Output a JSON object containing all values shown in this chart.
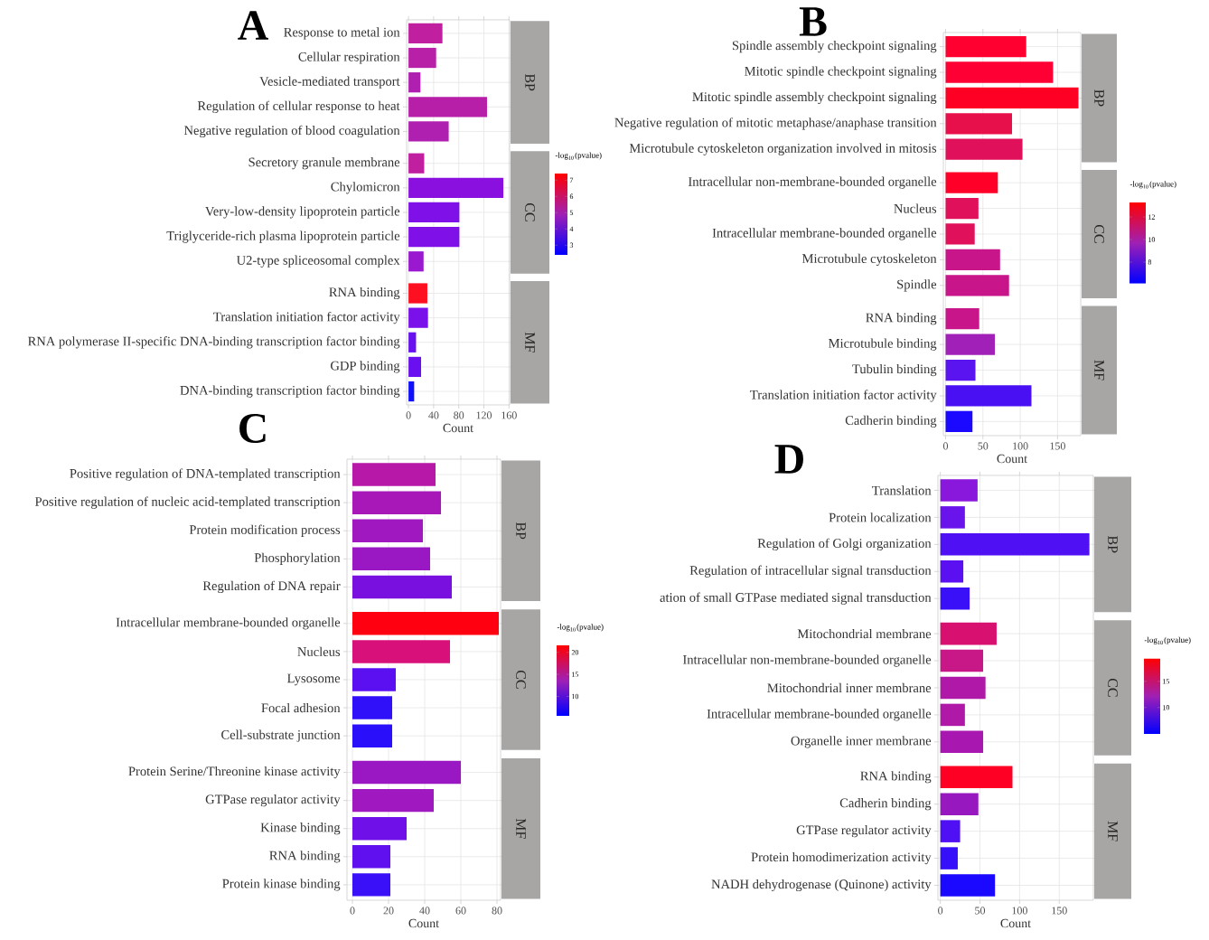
{
  "chart_data": [
    {
      "type": "bar",
      "orientation": "horizontal",
      "title": "A",
      "xlabel": "Count",
      "categories": [
        "Response to metal ion",
        "Cellular respiration",
        "Vesicle-mediated transport",
        "Regulation of cellular response to heat",
        "Negative regulation of blood coagulation",
        "Secretory granule membrane",
        "Chylomicron",
        "Very-low-density lipoprotein particle",
        "Triglyceride-rich plasma lipoprotein particle",
        "U2-type spliceosomal complex",
        "RNA binding",
        "Translation initiation factor activity",
        "RNA polymerase II-specific DNA-binding transcription factor binding",
        "GDP binding",
        "DNA-binding transcription factor binding"
      ],
      "values": [
        54,
        44,
        19,
        125,
        64,
        25,
        151,
        81,
        81,
        24,
        30,
        31,
        12,
        20,
        9
      ],
      "colors": [
        "#c020a0",
        "#b820a8",
        "#b020b0",
        "#b81fa8",
        "#b020b0",
        "#c01fa0",
        "#8a10e0",
        "#8010e8",
        "#8010e8",
        "#9a18d0",
        "#ff1020",
        "#7a10ea",
        "#6810f0",
        "#6a10f0",
        "#1010ff"
      ],
      "xlim": [
        -3,
        161
      ],
      "xticks": [
        0,
        40,
        80,
        120,
        160
      ],
      "grid": true,
      "clabel": "-log$_{10}$(pvalue)",
      "clim": [
        2.4,
        7.4
      ],
      "cticks": [
        3,
        4,
        5,
        6,
        7
      ],
      "annotations": [
        "BP",
        "CC",
        "MF"
      ]
    },
    {
      "type": "bar",
      "orientation": "horizontal",
      "title": "B",
      "xlabel": "Count",
      "categories": [
        "Spindle assembly checkpoint signaling",
        "Mitotic spindle checkpoint signaling",
        "Mitotic spindle assembly checkpoint signaling",
        "Negative regulation of mitotic metaphase/anaphase transition",
        "Microtubule cytoskeleton organization involved in mitosis",
        "Intracellular non-membrane-bounded organelle",
        "Nucleus",
        "Intracellular membrane-bounded organelle",
        "Microtubule cytoskeleton",
        "Spindle",
        "RNA binding",
        "Microtubule binding",
        "Tubulin binding",
        "Translation initiation factor activity",
        "Cadherin binding"
      ],
      "values": [
        108,
        144,
        178,
        89,
        103,
        70,
        44,
        39,
        73,
        85,
        45,
        66,
        40,
        115,
        36
      ],
      "colors": [
        "#ff0030",
        "#ff0035",
        "#ff0025",
        "#e8104a",
        "#e0105a",
        "#ff0028",
        "#e0105a",
        "#e0105a",
        "#c8158a",
        "#c8158a",
        "#c8158a",
        "#a020b8",
        "#5a14f0",
        "#4a10f4",
        "#1a08ff"
      ],
      "xlim": [
        -3,
        181
      ],
      "xticks": [
        0,
        50,
        100,
        150
      ],
      "grid": true,
      "clabel": "-log$_{10}$(pvalue)",
      "clim": [
        6.1,
        13.3
      ],
      "cticks": [
        8,
        10,
        12
      ],
      "annotations": [
        "BP",
        "CC",
        "MF"
      ]
    },
    {
      "type": "bar",
      "orientation": "horizontal",
      "title": "C",
      "xlabel": "Count",
      "categories": [
        "Positive regulation of DNA-templated transcription",
        "Positive regulation of nucleic acid-templated transcription",
        "Protein modification process",
        "Phosphorylation",
        "Regulation of DNA repair",
        "Intracellular membrane-bounded organelle",
        "Nucleus",
        "Lysosome",
        "Focal adhesion",
        "Cell-substrate junction",
        "Protein Serine/Threonine kinase activity",
        "GTPase regulator activity",
        "Kinase binding",
        "RNA binding",
        "Protein kinase binding"
      ],
      "values": [
        46,
        49,
        39,
        43,
        55,
        81,
        54,
        24,
        22,
        22,
        60,
        45,
        30,
        21,
        21
      ],
      "colors": [
        "#b818a8",
        "#a818b8",
        "#a018c0",
        "#9a18c4",
        "#7a10e0",
        "#ff0010",
        "#d8107a",
        "#5a10f0",
        "#3010f8",
        "#2a10fa",
        "#9a18c4",
        "#a018c0",
        "#7010e8",
        "#6010ee",
        "#3a10f8"
      ],
      "xlim": [
        -3,
        82
      ],
      "xticks": [
        0,
        20,
        40,
        60,
        80
      ],
      "grid": true,
      "clabel": "-log$_{10}$(pvalue)",
      "clim": [
        5.6,
        21.6
      ],
      "cticks": [
        10,
        15,
        20
      ],
      "annotations": [
        "BP",
        "CC",
        "MF"
      ]
    },
    {
      "type": "bar",
      "orientation": "horizontal",
      "title": "D",
      "xlabel": "Count",
      "categories": [
        "Translation",
        "Protein localization",
        "Regulation of Golgi organization",
        "Regulation of intracellular signal transduction",
        "ation of small GTPase mediated signal transduction",
        "Mitochondrial membrane",
        "Intracellular non-membrane-bounded organelle",
        "Mitochondrial inner membrane",
        "Intracellular membrane-bounded organelle",
        "Organelle inner membrane",
        "RNA binding",
        "Cadherin binding",
        "GTPase regulator activity",
        "Protein homodimerization activity",
        "NADH dehydrogenase (Quinone) activity"
      ],
      "values": [
        47,
        31,
        188,
        29,
        37,
        71,
        54,
        57,
        31,
        54,
        91,
        48,
        25,
        22,
        69
      ],
      "colors": [
        "#8a18dc",
        "#6a14ec",
        "#5010f4",
        "#5a10f0",
        "#3a10f8",
        "#d81070",
        "#c81888",
        "#b018a8",
        "#b018a8",
        "#a818b0",
        "#ff0025",
        "#9818c0",
        "#5010f4",
        "#3510f8",
        "#1a08ff"
      ],
      "xlim": [
        -3,
        193
      ],
      "xticks": [
        0,
        50,
        100,
        150
      ],
      "grid": true,
      "clabel": "-log$_{10}$(pvalue)",
      "clim": [
        4.9,
        19.4
      ],
      "cticks": [
        10,
        15
      ],
      "annotations": [
        "BP",
        "CC",
        "MF"
      ]
    }
  ]
}
